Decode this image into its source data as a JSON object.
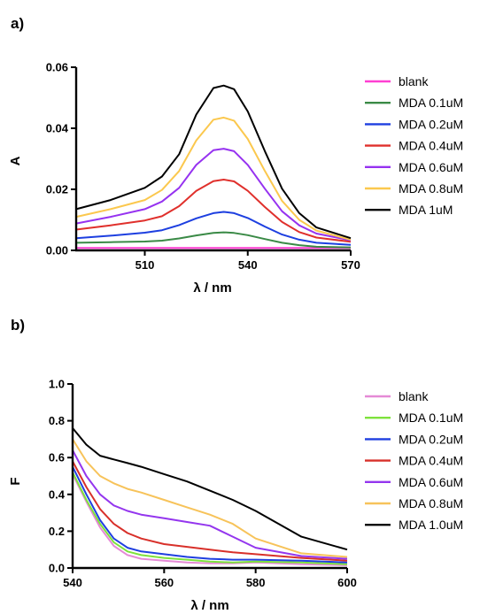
{
  "chart_data": [
    {
      "panel": "a)",
      "type": "line",
      "xlabel": "λ / nm",
      "ylabel": "A",
      "xlim": [
        490,
        570
      ],
      "ylim": [
        0,
        0.06
      ],
      "xticks": [
        510,
        540,
        570
      ],
      "xtick_labels": [
        "510",
        "540",
        "570"
      ],
      "yticks": [
        0,
        0.02,
        0.04,
        0.06
      ],
      "ytick_labels": [
        "0.00",
        "0.02",
        "0.04",
        "0.06"
      ],
      "grid": false,
      "legend_position": "right",
      "series": [
        {
          "name": "blank",
          "color": "#ff3fd2",
          "x": [
            490,
            500,
            510,
            520,
            530,
            540,
            550,
            560,
            570
          ],
          "y": [
            0.0008,
            0.0008,
            0.0008,
            0.0008,
            0.0008,
            0.0008,
            0.0008,
            0.0008,
            0.0008
          ]
        },
        {
          "name": "MDA 0.1uM",
          "color": "#3a8a46",
          "x": [
            490,
            500,
            510,
            515,
            520,
            525,
            530,
            533,
            536,
            540,
            545,
            550,
            555,
            560,
            570
          ],
          "y": [
            0.0025,
            0.0027,
            0.0029,
            0.0032,
            0.0039,
            0.0049,
            0.0057,
            0.0059,
            0.0057,
            0.005,
            0.0037,
            0.0025,
            0.0017,
            0.0012,
            0.001
          ]
        },
        {
          "name": "MDA 0.2uM",
          "color": "#1d3fe0",
          "x": [
            490,
            500,
            510,
            515,
            520,
            525,
            530,
            533,
            536,
            540,
            545,
            550,
            555,
            560,
            570
          ],
          "y": [
            0.004,
            0.0048,
            0.0058,
            0.0066,
            0.0083,
            0.0105,
            0.0122,
            0.0126,
            0.0122,
            0.0106,
            0.0078,
            0.0052,
            0.0035,
            0.0025,
            0.0018
          ]
        },
        {
          "name": "MDA 0.4uM",
          "color": "#e0302c",
          "x": [
            490,
            500,
            510,
            515,
            520,
            525,
            530,
            533,
            536,
            540,
            545,
            550,
            555,
            560,
            570
          ],
          "y": [
            0.0068,
            0.0082,
            0.0098,
            0.0112,
            0.0145,
            0.0195,
            0.0227,
            0.0232,
            0.0226,
            0.0195,
            0.0142,
            0.0093,
            0.006,
            0.0042,
            0.0028
          ]
        },
        {
          "name": "MDA 0.6uM",
          "color": "#9632f0",
          "x": [
            490,
            500,
            510,
            515,
            520,
            525,
            530,
            533,
            536,
            540,
            545,
            550,
            555,
            560,
            570
          ],
          "y": [
            0.0088,
            0.011,
            0.0135,
            0.016,
            0.0205,
            0.028,
            0.0328,
            0.0333,
            0.0325,
            0.028,
            0.0202,
            0.0128,
            0.0082,
            0.0055,
            0.0033
          ]
        },
        {
          "name": "MDA 0.8uM",
          "color": "#fbc84e",
          "x": [
            490,
            500,
            510,
            515,
            520,
            525,
            530,
            533,
            536,
            540,
            545,
            550,
            555,
            560,
            570
          ],
          "y": [
            0.011,
            0.0135,
            0.0165,
            0.0198,
            0.026,
            0.036,
            0.0428,
            0.0435,
            0.0425,
            0.0365,
            0.026,
            0.0162,
            0.01,
            0.0065,
            0.0035
          ]
        },
        {
          "name": "MDA 1uM",
          "color": "#000000",
          "x": [
            490,
            500,
            510,
            515,
            520,
            525,
            530,
            533,
            536,
            540,
            545,
            550,
            555,
            560,
            570
          ],
          "y": [
            0.0135,
            0.0165,
            0.0205,
            0.0242,
            0.0315,
            0.0445,
            0.0532,
            0.054,
            0.0528,
            0.0455,
            0.0325,
            0.0202,
            0.0122,
            0.0075,
            0.004
          ]
        }
      ]
    },
    {
      "panel": "b)",
      "type": "line",
      "xlabel": "λ / nm",
      "ylabel": "F",
      "xlim": [
        540,
        600
      ],
      "ylim": [
        0,
        1.0
      ],
      "xticks": [
        540,
        560,
        580,
        600
      ],
      "xtick_labels": [
        "540",
        "560",
        "580",
        "600"
      ],
      "yticks": [
        0,
        0.2,
        0.4,
        0.6,
        0.8,
        1.0
      ],
      "ytick_labels": [
        "0.0",
        "0.2",
        "0.4",
        "0.6",
        "0.8",
        "1.0"
      ],
      "grid": false,
      "legend_position": "right",
      "series": [
        {
          "name": "blank",
          "color": "#e58ad6",
          "x": [
            540,
            543,
            546,
            549,
            552,
            555,
            560,
            565,
            570,
            575,
            580,
            590,
            600
          ],
          "y": [
            0.51,
            0.36,
            0.22,
            0.12,
            0.07,
            0.05,
            0.04,
            0.03,
            0.025,
            0.025,
            0.03,
            0.02,
            0.015
          ]
        },
        {
          "name": "MDA 0.1uM",
          "color": "#7ee23c",
          "x": [
            540,
            543,
            546,
            549,
            552,
            555,
            560,
            565,
            570,
            575,
            580,
            590,
            600
          ],
          "y": [
            0.52,
            0.37,
            0.24,
            0.14,
            0.09,
            0.07,
            0.055,
            0.045,
            0.035,
            0.03,
            0.035,
            0.03,
            0.02
          ]
        },
        {
          "name": "MDA 0.2uM",
          "color": "#1f3fe0",
          "x": [
            540,
            543,
            546,
            549,
            552,
            555,
            560,
            565,
            570,
            575,
            580,
            590,
            600
          ],
          "y": [
            0.55,
            0.4,
            0.26,
            0.16,
            0.11,
            0.09,
            0.075,
            0.06,
            0.05,
            0.045,
            0.045,
            0.04,
            0.03
          ]
        },
        {
          "name": "MDA 0.4uM",
          "color": "#d8302a",
          "x": [
            540,
            543,
            546,
            549,
            552,
            555,
            560,
            565,
            570,
            575,
            580,
            590,
            600
          ],
          "y": [
            0.58,
            0.44,
            0.32,
            0.24,
            0.19,
            0.16,
            0.13,
            0.115,
            0.1,
            0.085,
            0.075,
            0.055,
            0.04
          ]
        },
        {
          "name": "MDA 0.6uM",
          "color": "#9436ee",
          "x": [
            540,
            543,
            546,
            549,
            552,
            555,
            560,
            565,
            570,
            575,
            580,
            590,
            600
          ],
          "y": [
            0.64,
            0.5,
            0.4,
            0.34,
            0.31,
            0.29,
            0.27,
            0.25,
            0.23,
            0.17,
            0.11,
            0.065,
            0.05
          ]
        },
        {
          "name": "MDA 0.8uM",
          "color": "#f7c35a",
          "x": [
            540,
            543,
            546,
            549,
            552,
            555,
            560,
            565,
            570,
            575,
            580,
            590,
            600
          ],
          "y": [
            0.7,
            0.58,
            0.5,
            0.46,
            0.43,
            0.41,
            0.37,
            0.33,
            0.29,
            0.24,
            0.16,
            0.08,
            0.06
          ]
        },
        {
          "name": "MDA 1.0uM",
          "color": "#000000",
          "x": [
            540,
            543,
            546,
            549,
            552,
            555,
            560,
            565,
            570,
            575,
            580,
            590,
            600
          ],
          "y": [
            0.76,
            0.67,
            0.61,
            0.59,
            0.57,
            0.55,
            0.51,
            0.47,
            0.42,
            0.37,
            0.31,
            0.17,
            0.1
          ]
        }
      ]
    }
  ]
}
